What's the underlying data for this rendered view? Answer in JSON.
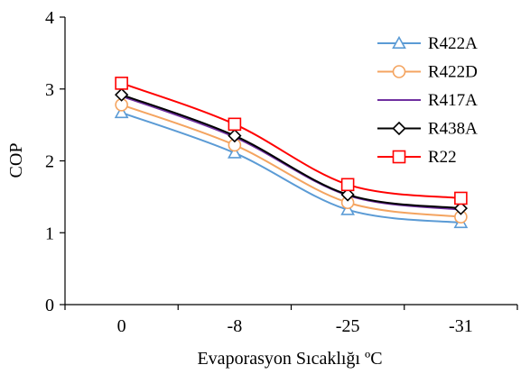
{
  "chart_data": {
    "type": "line",
    "title": "",
    "xlabel": "Evaporasyon Sıcaklığı ºC",
    "ylabel": "COP",
    "categories": [
      "0",
      "-8",
      "-25",
      "-31"
    ],
    "ylim": [
      0,
      4
    ],
    "yticks": [
      "0",
      "1",
      "2",
      "3",
      "4"
    ],
    "grid": false,
    "legend_position": "top-right",
    "smooth": true,
    "series": [
      {
        "name": "R422A",
        "values": [
          2.67,
          2.11,
          1.32,
          1.14
        ],
        "color": "#5B9BD5",
        "marker": "triangle-open"
      },
      {
        "name": "R422D",
        "values": [
          2.78,
          2.22,
          1.42,
          1.22
        ],
        "color": "#F4A460",
        "marker": "circle-open"
      },
      {
        "name": "R417A",
        "values": [
          2.9,
          2.33,
          1.52,
          1.32
        ],
        "color": "#7030A0",
        "marker": "none"
      },
      {
        "name": "R438A",
        "values": [
          2.92,
          2.35,
          1.53,
          1.34
        ],
        "color": "#000000",
        "marker": "diamond-open"
      },
      {
        "name": "R22",
        "values": [
          3.08,
          2.51,
          1.67,
          1.48
        ],
        "color": "#FF0000",
        "marker": "square-open"
      }
    ]
  }
}
